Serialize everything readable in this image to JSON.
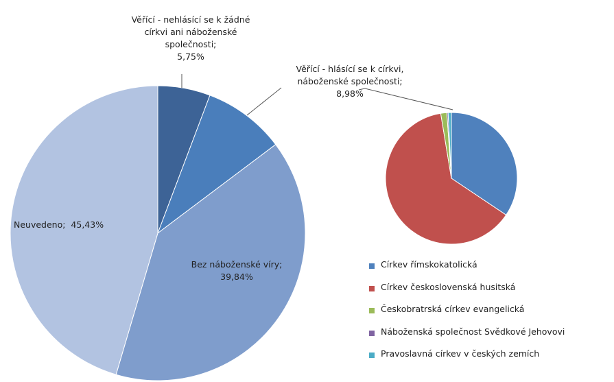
{
  "chart_data": [
    {
      "type": "pie",
      "categories": [
        "Věřící - nehlásící se k žádné církvi ani náboženské společnosti;",
        "Věřící - hlásící se k církvi, náboženské společnosti;",
        "Bez náboženské víry;",
        "Neuvedeno;"
      ],
      "values": [
        5.75,
        8.98,
        39.84,
        45.43
      ],
      "value_labels": [
        "5,75%",
        "8,98%",
        "39,84%",
        "45,43%"
      ],
      "colors": [
        "#3d6396",
        "#4a7ebb",
        "#7f9dcc",
        "#b2c3e1"
      ]
    },
    {
      "type": "pie",
      "categories": [
        "Církev římskokatolická",
        "Církev československá husitská",
        "Českobratrská církev evangelická",
        "Náboženská společnost Svědkové Jehovovi",
        "Pravoslavná církev v českých zemích"
      ],
      "values": [
        34.4,
        63.0,
        1.5,
        0.3,
        0.8
      ],
      "colors": [
        "#4f81bd",
        "#c0504d",
        "#9bbb59",
        "#8064a2",
        "#4bacc6"
      ],
      "legend": "bottom-right"
    }
  ]
}
